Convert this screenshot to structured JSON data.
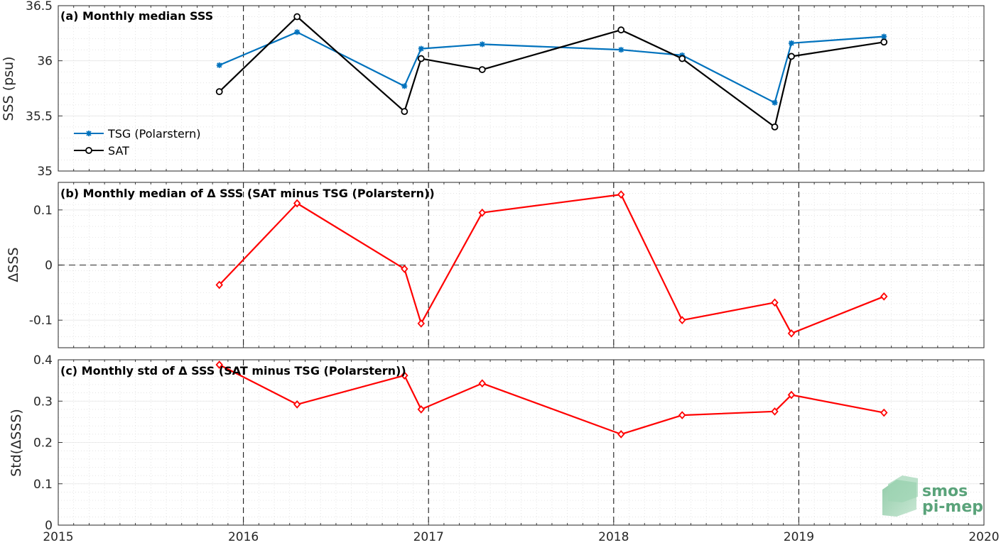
{
  "chart_data": [
    {
      "type": "line",
      "panel": "a",
      "title": "(a) Monthly median SSS",
      "xlabel": "",
      "ylabel": "SSS (psu)",
      "xlim": [
        2015,
        2020
      ],
      "ylim": [
        35,
        36.5
      ],
      "xticks": [
        "2015",
        "2016",
        "2017",
        "2018",
        "2019",
        "2020"
      ],
      "yticks": [
        "35",
        "35.5",
        "36",
        "36.5"
      ],
      "grid": true,
      "legend": "left",
      "x": [
        2015.87,
        2016.29,
        2016.87,
        2016.96,
        2017.29,
        2018.04,
        2018.37,
        2018.87,
        2018.96,
        2019.46
      ],
      "series": [
        {
          "name": "TSG (Polarstern)",
          "color": "#0072bd",
          "marker": "asterisk",
          "values": [
            35.96,
            36.26,
            35.77,
            36.11,
            36.15,
            36.1,
            36.05,
            35.62,
            36.16,
            36.22
          ]
        },
        {
          "name": "SAT",
          "color": "#000000",
          "marker": "circle",
          "values": [
            35.72,
            36.4,
            35.54,
            36.02,
            35.92,
            36.28,
            36.02,
            35.4,
            36.04,
            36.17
          ]
        }
      ]
    },
    {
      "type": "line",
      "panel": "b",
      "title": "(b) Monthly median of Δ SSS (SAT minus TSG (Polarstern))",
      "xlabel": "",
      "ylabel": "ΔSSS",
      "xlim": [
        2015,
        2020
      ],
      "ylim": [
        -0.15,
        0.15
      ],
      "xticks": [
        "2015",
        "2016",
        "2017",
        "2018",
        "2019",
        "2020"
      ],
      "yticks": [
        "-0.1",
        "0",
        "0.1"
      ],
      "grid": true,
      "x": [
        2015.87,
        2016.29,
        2016.87,
        2016.96,
        2017.29,
        2018.04,
        2018.37,
        2018.87,
        2018.96,
        2019.46
      ],
      "series": [
        {
          "name": "",
          "color": "#ff0000",
          "marker": "diamond",
          "values": [
            -0.036,
            0.112,
            -0.007,
            -0.106,
            0.095,
            0.128,
            -0.1,
            -0.068,
            -0.124,
            -0.057
          ]
        }
      ]
    },
    {
      "type": "line",
      "panel": "c",
      "title": "(c) Monthly std of Δ SSS (SAT minus TSG (Polarstern))",
      "xlabel": "",
      "ylabel": "Std(ΔSSS)",
      "xlim": [
        2015,
        2020
      ],
      "ylim": [
        0,
        0.4
      ],
      "xticks": [
        "2015",
        "2016",
        "2017",
        "2018",
        "2019",
        "2020"
      ],
      "yticks": [
        "0",
        "0.1",
        "0.2",
        "0.3",
        "0.4"
      ],
      "grid": true,
      "x": [
        2015.87,
        2016.29,
        2016.87,
        2016.96,
        2017.29,
        2018.04,
        2018.37,
        2018.87,
        2018.96,
        2019.46
      ],
      "series": [
        {
          "name": "",
          "color": "#ff0000",
          "marker": "diamond",
          "values": [
            0.388,
            0.292,
            0.362,
            0.28,
            0.343,
            0.22,
            0.266,
            0.275,
            0.315,
            0.272
          ]
        }
      ]
    }
  ],
  "logo": {
    "line1": "smos",
    "line2": "pi-mep",
    "color": "#5aa37a"
  }
}
